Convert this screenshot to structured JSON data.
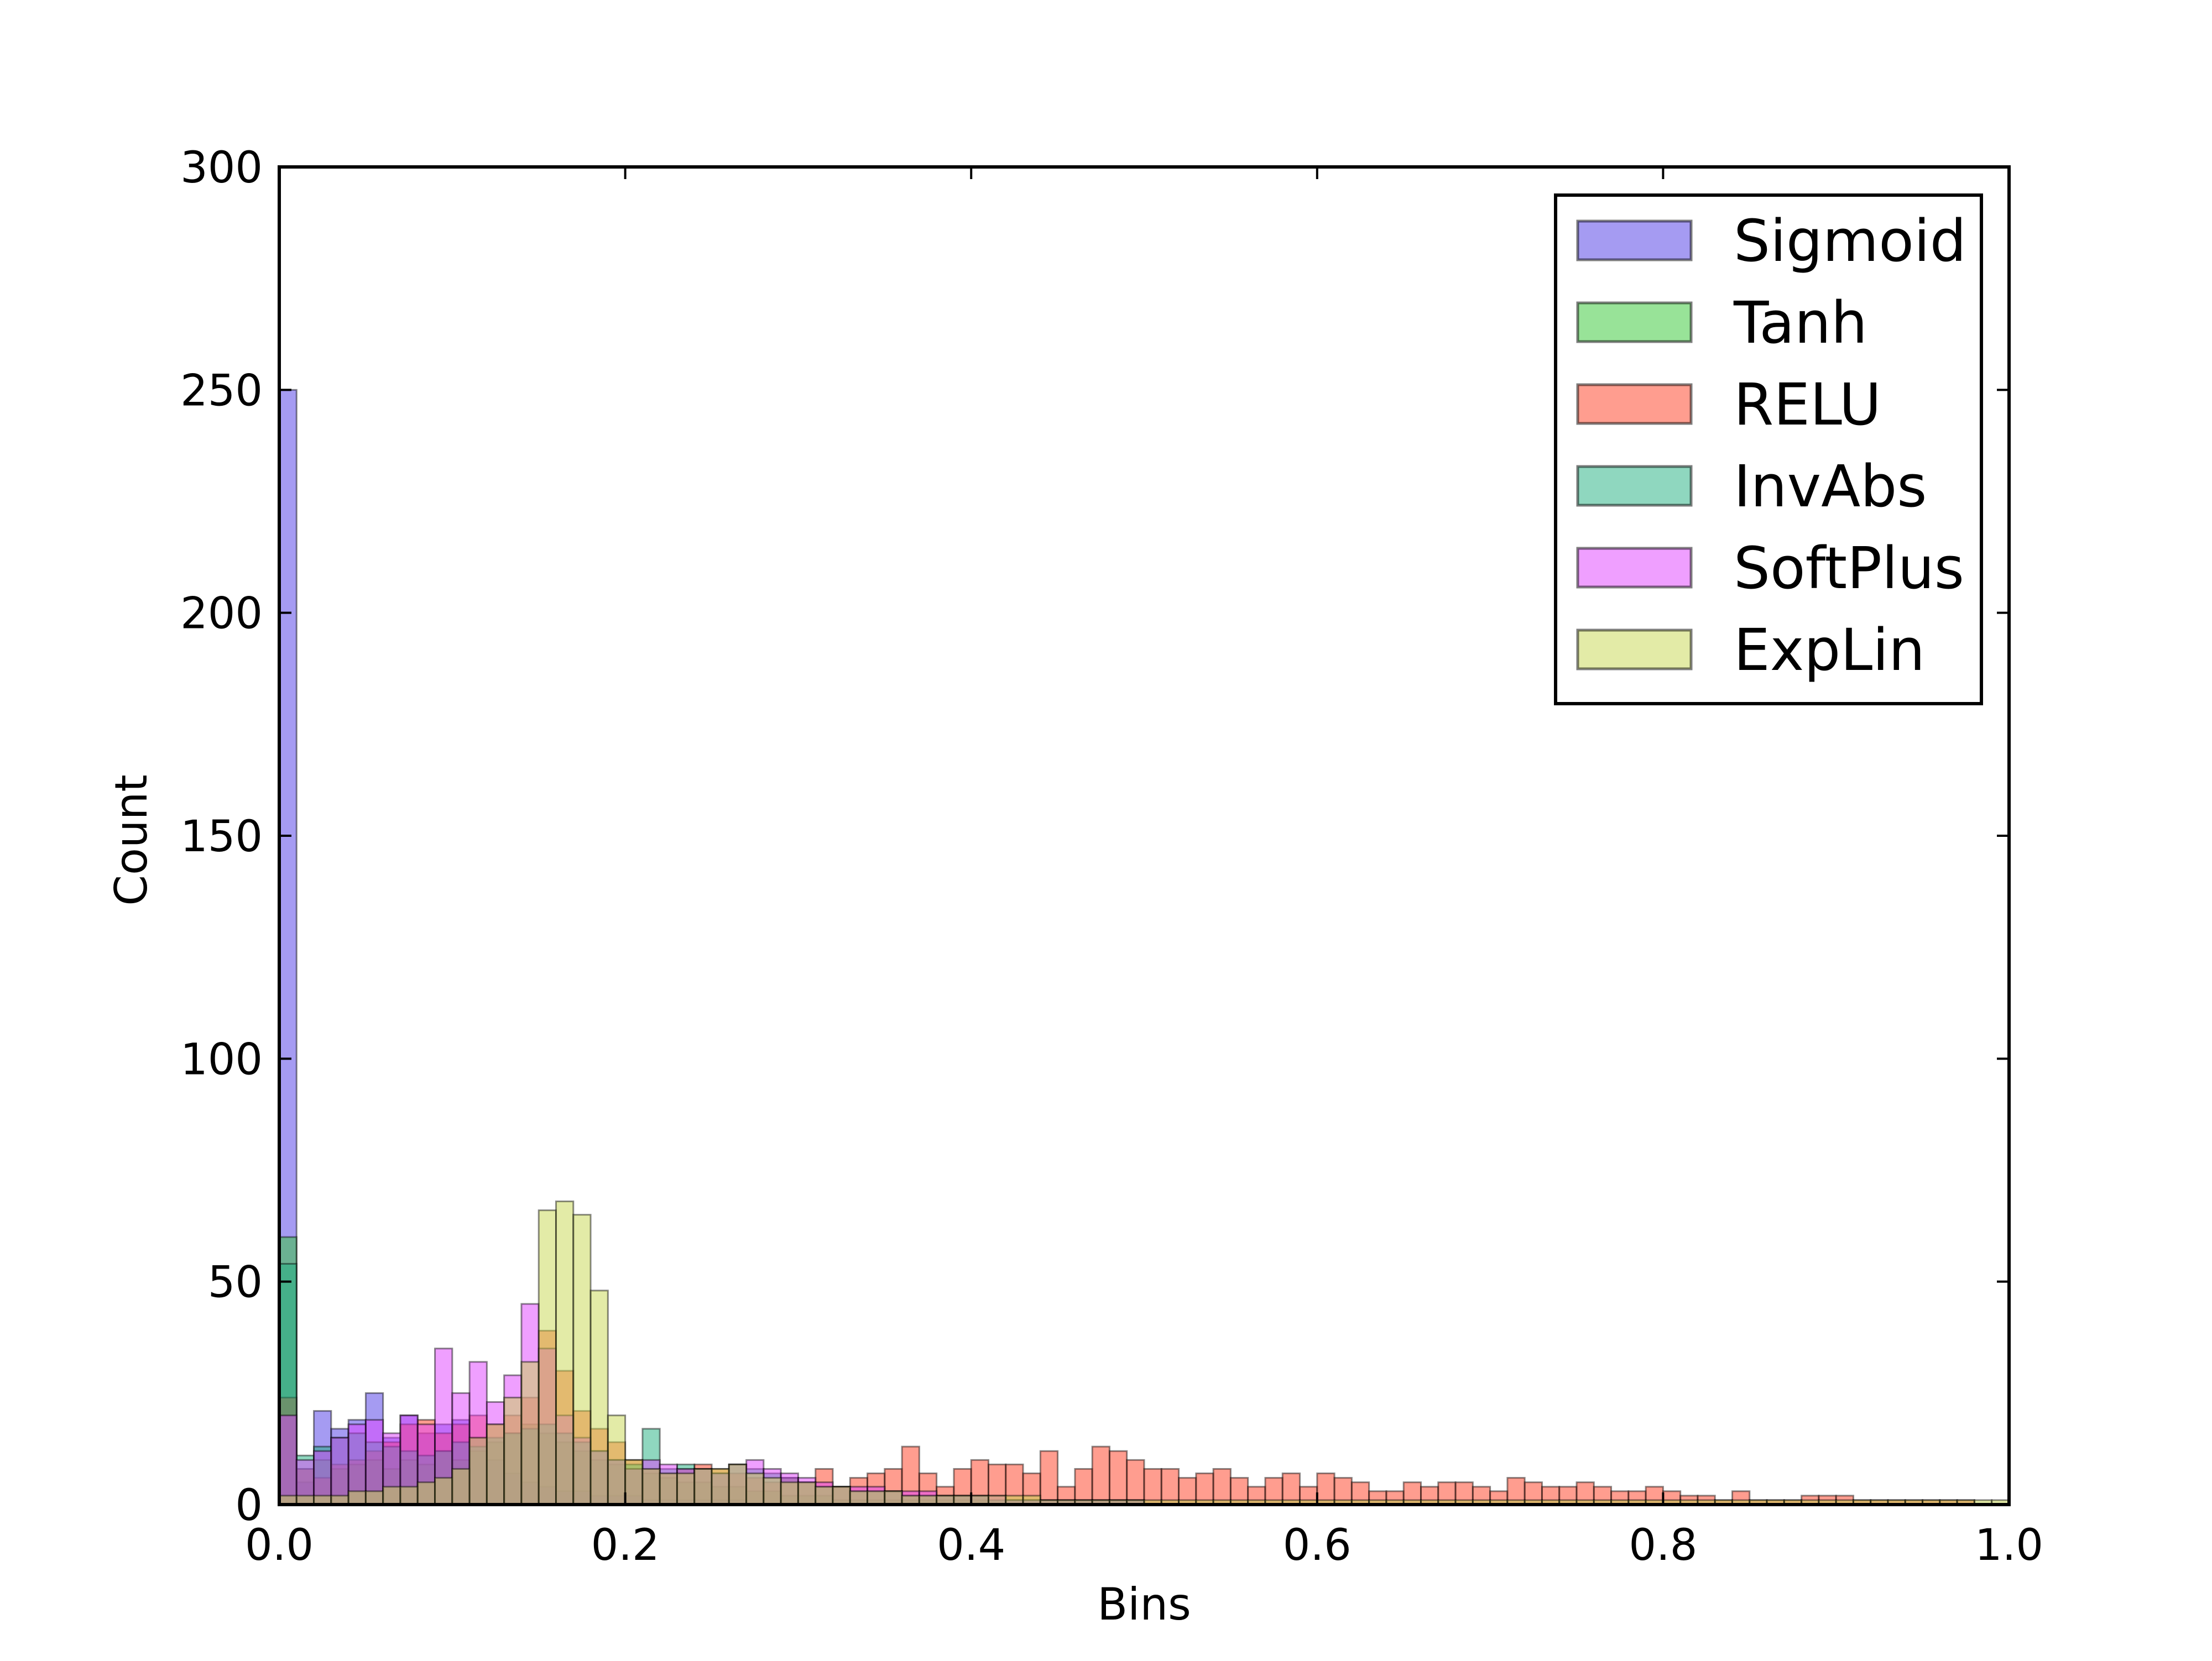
{
  "chart_data": {
    "type": "histogram",
    "title": "",
    "xlabel": "Bins",
    "ylabel": "Count",
    "xlim": [
      0.0,
      1.0
    ],
    "ylim": [
      0,
      300
    ],
    "grid": false,
    "legend": "top-right",
    "bin_width": 0.01,
    "x_ticks": [
      {
        "value": 0.0,
        "label": "0.0"
      },
      {
        "value": 0.2,
        "label": "0.2"
      },
      {
        "value": 0.4,
        "label": "0.4"
      },
      {
        "value": 0.6,
        "label": "0.6"
      },
      {
        "value": 0.8,
        "label": "0.8"
      },
      {
        "value": 1.0,
        "label": "1.0"
      }
    ],
    "y_ticks": [
      {
        "value": 0,
        "label": "0"
      },
      {
        "value": 50,
        "label": "50"
      },
      {
        "value": 100,
        "label": "100"
      },
      {
        "value": 150,
        "label": "150"
      },
      {
        "value": 200,
        "label": "200"
      },
      {
        "value": 250,
        "label": "250"
      },
      {
        "value": 300,
        "label": "300"
      }
    ],
    "series": [
      {
        "name": "Sigmoid",
        "color": "#4b38e6",
        "values": [
          250,
          5,
          21,
          17,
          19,
          25,
          15,
          20,
          16,
          18,
          19,
          15,
          10,
          7,
          5,
          4,
          3,
          3,
          2,
          2,
          2,
          1,
          1,
          1,
          1,
          1,
          1,
          0,
          0,
          0
        ]
      },
      {
        "name": "Tanh",
        "color": "#32c832",
        "values": [
          60,
          8,
          10,
          8,
          9,
          10,
          8,
          10,
          9,
          12,
          10,
          12,
          14,
          16,
          18,
          16,
          14,
          12,
          10,
          9,
          8,
          7,
          6,
          5,
          5,
          4,
          4,
          3,
          3,
          2,
          2,
          2,
          1,
          1,
          1,
          1,
          1,
          1,
          1,
          1,
          1
        ]
      },
      {
        "name": "RELU",
        "color": "#ff3c20",
        "values": [
          24,
          8,
          6,
          9,
          10,
          12,
          14,
          18,
          19,
          16,
          18,
          20,
          18,
          20,
          24,
          39,
          30,
          21,
          17,
          14,
          10,
          8,
          7,
          8,
          9,
          8,
          7,
          6,
          5,
          6,
          5,
          8,
          4,
          6,
          7,
          8,
          13,
          7,
          4,
          8,
          10,
          9,
          9,
          7,
          12,
          4,
          8,
          13,
          12,
          10,
          8,
          8,
          6,
          7,
          8,
          6,
          4,
          6,
          7,
          4,
          7,
          6,
          5,
          3,
          3,
          5,
          4,
          5,
          5,
          4,
          3,
          6,
          5,
          4,
          4,
          5,
          4,
          3,
          3,
          4,
          3,
          2,
          2,
          1,
          3,
          1,
          1,
          1,
          2,
          2,
          2,
          1,
          1,
          1,
          1,
          1,
          1,
          1,
          0,
          0
        ]
      },
      {
        "name": "InvAbs",
        "color": "#20b080",
        "values": [
          54,
          11,
          13,
          15,
          16,
          14,
          13,
          12,
          11,
          12,
          14,
          13,
          15,
          16,
          17,
          18,
          16,
          14,
          12,
          10,
          9,
          17,
          8,
          9,
          8,
          7,
          9,
          8,
          7,
          6,
          5,
          4,
          4,
          3,
          3,
          3,
          2,
          2,
          2,
          2,
          2,
          1,
          1,
          1,
          1,
          1,
          1,
          1,
          1,
          1
        ]
      },
      {
        "name": "SoftPlus",
        "color": "#e040ff",
        "values": [
          20,
          10,
          12,
          15,
          18,
          19,
          16,
          20,
          18,
          35,
          25,
          32,
          23,
          29,
          45,
          35,
          20,
          15,
          12,
          10,
          8,
          10,
          9,
          8,
          8,
          7,
          9,
          10,
          8,
          7,
          6,
          5,
          4,
          4,
          4,
          3,
          3,
          3,
          2,
          2,
          2,
          2,
          1,
          1,
          1,
          1,
          1,
          1,
          1,
          1
        ]
      },
      {
        "name": "ExpLin",
        "color": "#c8d850",
        "values": [
          2,
          2,
          2,
          2,
          3,
          3,
          4,
          4,
          5,
          6,
          8,
          15,
          18,
          24,
          32,
          66,
          68,
          65,
          48,
          20,
          10,
          8,
          7,
          7,
          8,
          8,
          9,
          7,
          6,
          5,
          5,
          4,
          4,
          3,
          3,
          3,
          2,
          2,
          2,
          2,
          2,
          2,
          2,
          2,
          1,
          1,
          1,
          1,
          1,
          1,
          1,
          1,
          1,
          1,
          1,
          1,
          1,
          1,
          1,
          1,
          1,
          1,
          1,
          1,
          1,
          1,
          1,
          1,
          1,
          1,
          1,
          1,
          1,
          1,
          1,
          1,
          1,
          1,
          1,
          1,
          1,
          1,
          1,
          1,
          1,
          1,
          1,
          1,
          1,
          1,
          1,
          1,
          1,
          1,
          1,
          1,
          1,
          1,
          1,
          1
        ]
      }
    ]
  }
}
